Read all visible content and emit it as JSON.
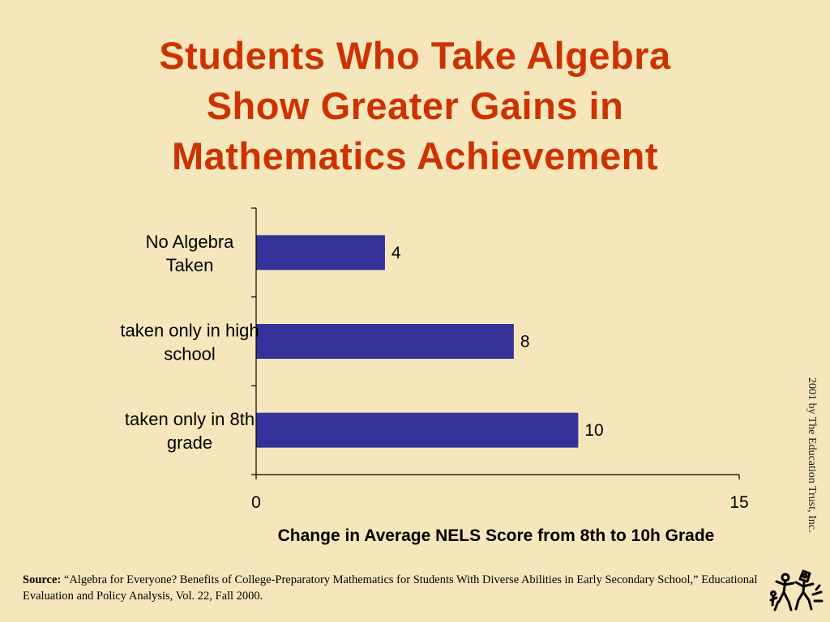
{
  "slide": {
    "title_lines": [
      "Students Who Take Algebra",
      "Show Greater Gains in",
      "Mathematics Achievement"
    ],
    "copyright": "2001 by The Education Trust, Inc.",
    "source_prefix": "Source:",
    "source_text": "“Algebra for Everyone? Benefits of College-Preparatory Mathematics for Students With Diverse Abilities in Early Secondary School,” Educational Evaluation and Policy Analysis, Vol. 22, Fall 2000.",
    "colors": {
      "background": "#f5e7bb",
      "title": "#cc3300",
      "bar": "#333399",
      "axis": "#000000"
    },
    "logo_icon": "children-drawing-logo-icon"
  },
  "chart_data": {
    "type": "bar",
    "orientation": "horizontal",
    "categories": [
      [
        "No Algebra",
        "Taken"
      ],
      [
        "taken only in high",
        "school"
      ],
      [
        "taken only in 8th",
        "grade"
      ]
    ],
    "values": [
      4,
      8,
      10
    ],
    "data_labels": [
      "4",
      "8",
      "10"
    ],
    "xlabel": "Change in Average NELS Score from 8th to 10h Grade",
    "ylabel": "",
    "xlim": [
      0,
      15
    ],
    "x_tick_labels": [
      "0",
      "15"
    ],
    "grid": false,
    "legend": "none"
  }
}
